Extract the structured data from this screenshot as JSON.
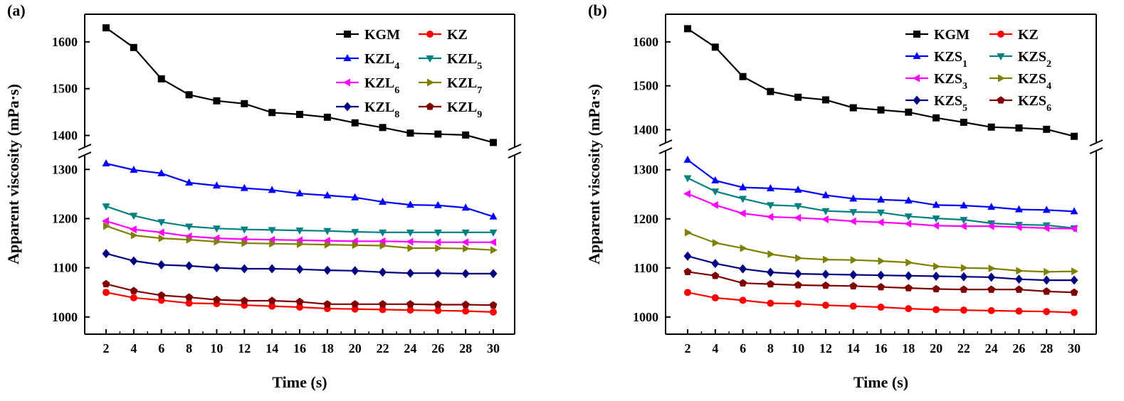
{
  "chart_data": [
    {
      "type": "line",
      "panel_label": "(a)",
      "xlabel": "Time (s)",
      "ylabel": "Apparent viscosity (mPa·s)",
      "x": [
        2,
        4,
        6,
        8,
        10,
        12,
        14,
        16,
        18,
        20,
        22,
        24,
        26,
        28,
        30
      ],
      "x_ticks": [
        "2",
        "4",
        "6",
        "8",
        "10",
        "12",
        "14",
        "16",
        "18",
        "20",
        "22",
        "24",
        "26",
        "28",
        "30"
      ],
      "upper_yrange": [
        1375,
        1650
      ],
      "upper_yticks": [
        "1400",
        "1500",
        "1600"
      ],
      "lower_yrange": [
        965,
        1325
      ],
      "lower_yticks": [
        "1000",
        "1100",
        "1200",
        "1300"
      ],
      "series": [
        {
          "name": "KGM",
          "base": "KGM",
          "sub": "",
          "color": "#000000",
          "marker": "square",
          "values": [
            1630,
            1588,
            1521,
            1487,
            1474,
            1468,
            1449,
            1445,
            1439,
            1427,
            1417,
            1405,
            1403,
            1401,
            1385
          ]
        },
        {
          "name": "KZ",
          "base": "KZ",
          "sub": "",
          "color": "#ff0000",
          "marker": "circle",
          "values": [
            1050,
            1039,
            1034,
            1028,
            1027,
            1024,
            1022,
            1020,
            1017,
            1016,
            1015,
            1014,
            1013,
            1012,
            1010
          ]
        },
        {
          "name": "KZL4",
          "base": "KZL",
          "sub": "4",
          "color": "#0000ff",
          "marker": "triangle-up",
          "values": [
            1312,
            1299,
            1292,
            1273,
            1267,
            1262,
            1258,
            1251,
            1247,
            1243,
            1234,
            1228,
            1227,
            1222,
            1204
          ]
        },
        {
          "name": "KZL5",
          "base": "KZL",
          "sub": "5",
          "color": "#008080",
          "marker": "triangle-down",
          "values": [
            1225,
            1206,
            1193,
            1184,
            1180,
            1178,
            1177,
            1176,
            1175,
            1173,
            1172,
            1172,
            1172,
            1172,
            1172
          ]
        },
        {
          "name": "KZL6",
          "base": "KZL",
          "sub": "6",
          "color": "#ff00ff",
          "marker": "triangle-left",
          "values": [
            1195,
            1178,
            1172,
            1164,
            1160,
            1158,
            1157,
            1156,
            1155,
            1154,
            1154,
            1153,
            1152,
            1152,
            1152
          ]
        },
        {
          "name": "KZL7",
          "base": "KZL",
          "sub": "7",
          "color": "#808000",
          "marker": "triangle-right",
          "values": [
            1185,
            1166,
            1160,
            1157,
            1153,
            1150,
            1149,
            1148,
            1147,
            1146,
            1145,
            1140,
            1140,
            1139,
            1136
          ]
        },
        {
          "name": "KZL8",
          "base": "KZL",
          "sub": "8",
          "color": "#000080",
          "marker": "diamond",
          "values": [
            1129,
            1114,
            1106,
            1104,
            1100,
            1098,
            1098,
            1097,
            1095,
            1094,
            1091,
            1089,
            1089,
            1088,
            1088
          ]
        },
        {
          "name": "KZL9",
          "base": "KZL",
          "sub": "9",
          "color": "#800000",
          "marker": "pentagon",
          "values": [
            1067,
            1053,
            1044,
            1040,
            1035,
            1033,
            1033,
            1031,
            1026,
            1026,
            1026,
            1026,
            1025,
            1025,
            1024
          ]
        }
      ]
    },
    {
      "type": "line",
      "panel_label": "(b)",
      "xlabel": "Time (s)",
      "ylabel": "Apparent viscosity (mPa·s)",
      "x": [
        2,
        4,
        6,
        8,
        10,
        12,
        14,
        16,
        18,
        20,
        22,
        24,
        26,
        28,
        30
      ],
      "x_ticks": [
        "2",
        "4",
        "6",
        "8",
        "10",
        "12",
        "14",
        "16",
        "18",
        "20",
        "22",
        "24",
        "26",
        "28",
        "30"
      ],
      "upper_yrange": [
        1370,
        1650
      ],
      "upper_yticks": [
        "1400",
        "1500",
        "1600"
      ],
      "lower_yrange": [
        965,
        1330
      ],
      "lower_yticks": [
        "1000",
        "1100",
        "1200",
        "1300"
      ],
      "series": [
        {
          "name": "KGM",
          "base": "KGM",
          "sub": "",
          "color": "#000000",
          "marker": "square",
          "values": [
            1630,
            1588,
            1521,
            1487,
            1474,
            1468,
            1450,
            1445,
            1440,
            1427,
            1417,
            1406,
            1404,
            1401,
            1385
          ]
        },
        {
          "name": "KZ",
          "base": "KZ",
          "sub": "",
          "color": "#ff0000",
          "marker": "circle",
          "values": [
            1050,
            1039,
            1034,
            1028,
            1027,
            1024,
            1022,
            1020,
            1017,
            1015,
            1014,
            1013,
            1012,
            1011,
            1009
          ]
        },
        {
          "name": "KZS1",
          "base": "KZS",
          "sub": "1",
          "color": "#0000ff",
          "marker": "triangle-up",
          "values": [
            1320,
            1278,
            1264,
            1262,
            1259,
            1248,
            1241,
            1239,
            1237,
            1228,
            1227,
            1224,
            1219,
            1218,
            1215
          ]
        },
        {
          "name": "KZS2",
          "base": "KZS",
          "sub": "2",
          "color": "#008080",
          "marker": "triangle-down",
          "values": [
            1283,
            1256,
            1241,
            1228,
            1226,
            1216,
            1214,
            1213,
            1205,
            1201,
            1198,
            1191,
            1188,
            1187,
            1181
          ]
        },
        {
          "name": "KZS3",
          "base": "KZS",
          "sub": "3",
          "color": "#ff00ff",
          "marker": "triangle-left",
          "values": [
            1251,
            1228,
            1211,
            1204,
            1202,
            1199,
            1195,
            1193,
            1190,
            1186,
            1185,
            1185,
            1183,
            1181,
            1180
          ]
        },
        {
          "name": "KZS4",
          "base": "KZS",
          "sub": "4",
          "color": "#808000",
          "marker": "triangle-right",
          "values": [
            1172,
            1151,
            1140,
            1128,
            1120,
            1117,
            1116,
            1114,
            1111,
            1103,
            1100,
            1099,
            1094,
            1092,
            1093
          ]
        },
        {
          "name": "KZS5",
          "base": "KZS",
          "sub": "5",
          "color": "#000080",
          "marker": "diamond",
          "values": [
            1124,
            1109,
            1098,
            1091,
            1088,
            1087,
            1086,
            1085,
            1084,
            1083,
            1082,
            1081,
            1077,
            1075,
            1075
          ]
        },
        {
          "name": "KZS6",
          "base": "KZS",
          "sub": "6",
          "color": "#800000",
          "marker": "pentagon",
          "values": [
            1092,
            1084,
            1069,
            1067,
            1065,
            1064,
            1063,
            1061,
            1059,
            1057,
            1056,
            1056,
            1056,
            1052,
            1050
          ]
        }
      ]
    }
  ]
}
